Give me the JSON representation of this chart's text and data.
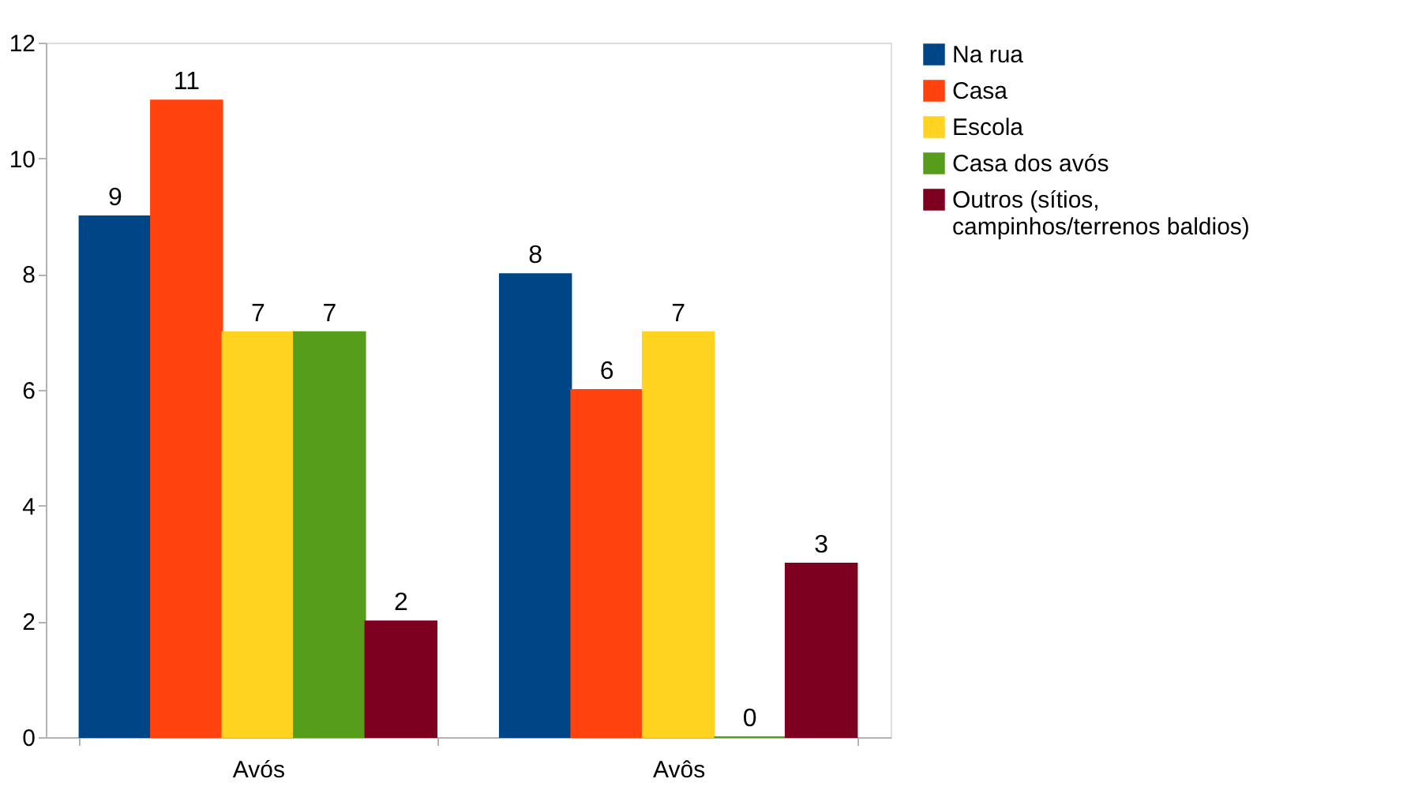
{
  "chart_data": {
    "type": "bar",
    "categories": [
      "Avós",
      "Avôs"
    ],
    "series": [
      {
        "name": "Na rua",
        "color": "#004586",
        "values": [
          9,
          8
        ]
      },
      {
        "name": "Casa",
        "color": "#ff420e",
        "values": [
          11,
          6
        ]
      },
      {
        "name": "Escola",
        "color": "#ffd320",
        "values": [
          7,
          7
        ]
      },
      {
        "name": "Casa dos avós",
        "color": "#579d1c",
        "values": [
          7,
          0
        ]
      },
      {
        "name": "Outros (sítios,\ncampinhos/terrenos baldios)",
        "color": "#7e0021",
        "values": [
          2,
          3
        ]
      }
    ],
    "ylim": [
      0,
      12
    ],
    "yticks": [
      0,
      2,
      4,
      6,
      8,
      10,
      12
    ],
    "data_labels": true,
    "grid": false,
    "legend": "right"
  }
}
